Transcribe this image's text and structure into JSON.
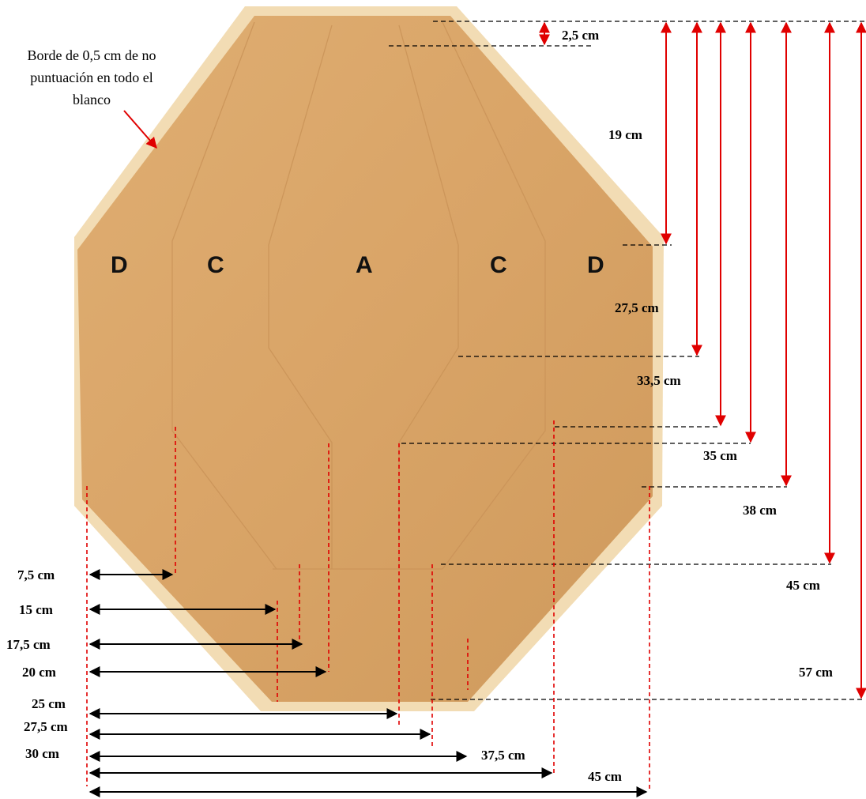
{
  "note": [
    "Borde de 0,5 cm de no",
    "puntuación en todo el",
    "blanco"
  ],
  "zones": [
    "D",
    "C",
    "A",
    "C",
    "D"
  ],
  "vertical_dims": [
    "2,5 cm",
    "19 cm",
    "27,5 cm",
    "33,5 cm",
    "35 cm",
    "38 cm",
    "45 cm",
    "57 cm"
  ],
  "horizontal_dims": [
    "7,5  cm",
    "15  cm",
    "17,5  cm",
    "20 cm",
    "25 cm",
    "27,5  cm",
    "30  cm",
    "37,5  cm",
    "45 cm"
  ],
  "colors": {
    "target_fill": "#d9a467",
    "target_shadow": "#c88f52",
    "edge": "#f1d6a8",
    "red": "#e00000",
    "black": "#000000"
  }
}
